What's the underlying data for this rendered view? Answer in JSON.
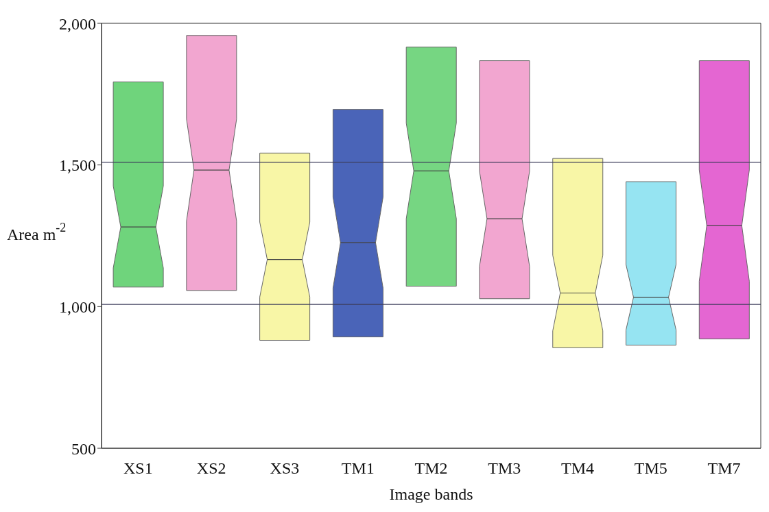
{
  "chart_data": {
    "type": "box",
    "xlabel": "Image bands",
    "ylabel": "Area m$^{-2}$",
    "categories": [
      "XS1",
      "XS2",
      "XS3",
      "TM1",
      "TM2",
      "TM3",
      "TM4",
      "TM5",
      "TM7"
    ],
    "colors": [
      "#6fd47c",
      "#f2a6d0",
      "#f8f6a6",
      "#4a64b8",
      "#76d682",
      "#f2a6d0",
      "#f8f6a6",
      "#96e4f2",
      "#e466d2"
    ],
    "boxes": [
      {
        "low": 1069,
        "q1": 1069,
        "median": 1281,
        "q3": 1793,
        "high": 1793
      },
      {
        "low": 1057,
        "q1": 1057,
        "median": 1482,
        "q3": 1957,
        "high": 1957
      },
      {
        "low": 881,
        "q1": 881,
        "median": 1166,
        "q3": 1542,
        "high": 1542
      },
      {
        "low": 893,
        "q1": 893,
        "median": 1226,
        "q3": 1696,
        "high": 1696
      },
      {
        "low": 1072,
        "q1": 1072,
        "median": 1479,
        "q3": 1916,
        "high": 1916
      },
      {
        "low": 1028,
        "q1": 1028,
        "median": 1310,
        "q3": 1868,
        "high": 1868
      },
      {
        "low": 855,
        "q1": 855,
        "median": 1048,
        "q3": 1523,
        "high": 1523
      },
      {
        "low": 864,
        "q1": 864,
        "median": 1033,
        "q3": 1441,
        "high": 1441
      },
      {
        "low": 886,
        "q1": 886,
        "median": 1286,
        "q3": 1868,
        "high": 1868
      }
    ],
    "ylim": [
      500,
      2000
    ],
    "yticks": [
      {
        "value": 500,
        "label": "500"
      },
      {
        "value": 1000,
        "label": "1,000"
      },
      {
        "value": 1500,
        "label": "1,500"
      },
      {
        "value": 2000,
        "label": "2,000"
      }
    ],
    "ref_lines": [
      {
        "axis": "y",
        "value": 1510,
        "color": "#3c3c5a"
      },
      {
        "axis": "y",
        "value": 1008,
        "color": "#3c3c5a"
      }
    ],
    "grid": false,
    "legend": false
  }
}
